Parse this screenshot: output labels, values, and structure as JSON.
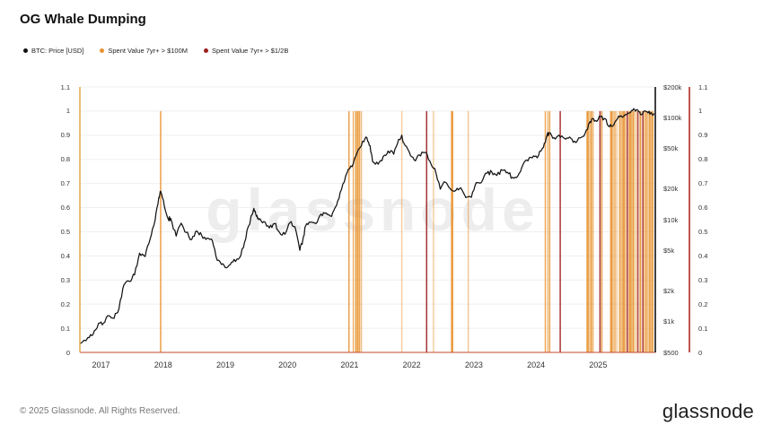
{
  "title": "OG Whale Dumping",
  "watermark": "glassnode",
  "legend": [
    {
      "label": "BTC: Price [USD]",
      "color": "#111111"
    },
    {
      "label": "Spent Value 7yr+ > $100M",
      "color": "#E8922F"
    },
    {
      "label": "Spent Value 7yr+ > $1/2B",
      "color": "#9E1E1E"
    }
  ],
  "footer": {
    "copyright": "© 2025 Glassnode. All Rights Reserved.",
    "logo": "glassnode"
  },
  "chart_data": {
    "type": "line",
    "title": "OG Whale Dumping",
    "grid": true,
    "x_axis": {
      "range": [
        2016.66,
        2025.92
      ],
      "ticks": [
        2017,
        2018,
        2019,
        2020,
        2021,
        2022,
        2023,
        2024,
        2025
      ],
      "tick_labels": [
        "2017",
        "2018",
        "2019",
        "2020",
        "2021",
        "2022",
        "2023",
        "2024",
        "2025"
      ]
    },
    "left_axis": {
      "side": "left",
      "color": "#DFA23E",
      "range": [
        0,
        1.1
      ],
      "tick_values": [
        0,
        0.1,
        0.2,
        0.3,
        0.4,
        0.5,
        0.6,
        0.7,
        0.8,
        0.9,
        1,
        1.1
      ],
      "tick_labels": [
        "0",
        "0.1",
        "0.2",
        "0.3",
        "0.4",
        "0.5",
        "0.6",
        "0.7",
        "0.8",
        "0.9",
        "1",
        "1.1"
      ]
    },
    "price_axis": {
      "side": "right",
      "color": "#111111",
      "scale": "log",
      "range_usd": [
        500,
        200000
      ],
      "ticks": [
        {
          "label": "$200k",
          "value": 200000
        },
        {
          "label": "$100k",
          "value": 100000
        },
        {
          "label": "$50k",
          "value": 50000
        },
        {
          "label": "$20k",
          "value": 20000
        },
        {
          "label": "$10k",
          "value": 10000
        },
        {
          "label": "$5k",
          "value": 5000
        },
        {
          "label": "$2k",
          "value": 2000
        },
        {
          "label": "$1k",
          "value": 1000
        },
        {
          "label": "$500",
          "value": 500
        }
      ]
    },
    "far_right_axis": {
      "side": "far-right",
      "color": "#B02A21",
      "range": [
        0,
        1.1
      ],
      "tick_values": [
        0,
        0.1,
        0.2,
        0.3,
        0.4,
        0.5,
        0.6,
        0.7,
        0.8,
        0.9,
        1,
        1.1
      ],
      "tick_labels": [
        "0",
        "0.1",
        "0.2",
        "0.3",
        "0.4",
        "0.5",
        "0.6",
        "0.7",
        "0.8",
        "0.9",
        "1",
        "1.1"
      ]
    },
    "price_series": {
      "name": "BTC: Price [USD]",
      "color": "#131313",
      "x": [
        2016.66,
        2016.79,
        2016.87,
        2016.96,
        2017.04,
        2017.12,
        2017.21,
        2017.29,
        2017.37,
        2017.46,
        2017.54,
        2017.62,
        2017.71,
        2017.79,
        2017.87,
        2017.93,
        2017.96,
        2018.02,
        2018.08,
        2018.12,
        2018.21,
        2018.29,
        2018.37,
        2018.46,
        2018.54,
        2018.62,
        2018.71,
        2018.79,
        2018.87,
        2018.96,
        2019.04,
        2019.12,
        2019.21,
        2019.29,
        2019.37,
        2019.46,
        2019.5,
        2019.54,
        2019.62,
        2019.71,
        2019.79,
        2019.87,
        2019.96,
        2020.04,
        2020.12,
        2020.2,
        2020.25,
        2020.29,
        2020.37,
        2020.46,
        2020.54,
        2020.62,
        2020.71,
        2020.79,
        2020.87,
        2020.96,
        2021.04,
        2021.12,
        2021.21,
        2021.28,
        2021.33,
        2021.37,
        2021.46,
        2021.54,
        2021.62,
        2021.71,
        2021.79,
        2021.84,
        2021.87,
        2021.96,
        2022.04,
        2022.12,
        2022.21,
        2022.29,
        2022.37,
        2022.46,
        2022.54,
        2022.62,
        2022.71,
        2022.79,
        2022.87,
        2022.96,
        2023.04,
        2023.12,
        2023.21,
        2023.29,
        2023.37,
        2023.46,
        2023.54,
        2023.62,
        2023.71,
        2023.79,
        2023.87,
        2023.96,
        2024.04,
        2024.12,
        2024.18,
        2024.21,
        2024.29,
        2024.37,
        2024.46,
        2024.54,
        2024.62,
        2024.71,
        2024.79,
        2024.87,
        2024.92,
        2024.96,
        2025.04,
        2025.12,
        2025.16,
        2025.21,
        2025.29,
        2025.37,
        2025.46,
        2025.54,
        2025.6,
        2025.67,
        2025.71,
        2025.79,
        2025.85,
        2025.9
      ],
      "price_usd": [
        610,
        700,
        745,
        965,
        970,
        1150,
        1080,
        1350,
        2300,
        2480,
        2880,
        4700,
        4350,
        6450,
        9900,
        16500,
        19000,
        13500,
        10200,
        10300,
        6900,
        9250,
        7500,
        6400,
        7750,
        7000,
        6600,
        6300,
        4000,
        3700,
        3450,
        3850,
        4100,
        5300,
        8550,
        12900,
        10800,
        10000,
        9600,
        8300,
        9150,
        7550,
        7200,
        9350,
        8550,
        5000,
        6450,
        8650,
        9450,
        9140,
        11350,
        11650,
        10780,
        13800,
        19700,
        29000,
        33100,
        45200,
        58800,
        63500,
        53000,
        37300,
        35000,
        41500,
        47100,
        43800,
        61300,
        67500,
        57000,
        46200,
        38500,
        43200,
        45500,
        37700,
        31800,
        19900,
        23300,
        20050,
        19400,
        20500,
        16500,
        16550,
        23100,
        23150,
        28500,
        29250,
        27200,
        30450,
        29200,
        26000,
        26950,
        34650,
        37700,
        42250,
        42550,
        51200,
        68500,
        71300,
        63600,
        67500,
        62700,
        64600,
        58950,
        63300,
        70200,
        91400,
        98000,
        93400,
        102400,
        96900,
        84350,
        82550,
        94200,
        104600,
        107100,
        118000,
        115800,
        113000,
        108200,
        114000,
        112000,
        110000
      ]
    },
    "events_100m": {
      "name": "Spent Value 7yr+ > $100M",
      "color": "#E8922F",
      "impulse_top": 1.0,
      "items": [
        [
          2017.96,
          0.9,
          1.5
        ],
        [
          2020.99,
          0.85,
          1.5
        ],
        [
          2021.06,
          0.7,
          1.5
        ],
        [
          2021.1,
          0.9,
          1.5
        ],
        [
          2021.13,
          0.9,
          2
        ],
        [
          2021.16,
          0.85,
          1.5
        ],
        [
          2021.19,
          0.6,
          1.5
        ],
        [
          2021.84,
          0.45,
          1.5
        ],
        [
          2022.35,
          0.45,
          1.5
        ],
        [
          2022.65,
          0.95,
          2.5
        ],
        [
          2022.91,
          0.5,
          1.5
        ],
        [
          2024.15,
          0.8,
          1.5
        ],
        [
          2024.19,
          0.6,
          1.5
        ],
        [
          2024.22,
          0.85,
          1.5
        ],
        [
          2024.83,
          0.9,
          2.5
        ],
        [
          2024.86,
          0.5,
          2
        ],
        [
          2024.89,
          0.85,
          2
        ],
        [
          2024.92,
          0.6,
          1.5
        ],
        [
          2025.06,
          0.85,
          1.5
        ],
        [
          2025.21,
          0.9,
          2.5
        ],
        [
          2025.24,
          0.55,
          2
        ],
        [
          2025.27,
          0.8,
          1.5
        ],
        [
          2025.3,
          0.5,
          1.5
        ],
        [
          2025.35,
          0.85,
          2
        ],
        [
          2025.38,
          0.6,
          1.5
        ],
        [
          2025.41,
          0.9,
          2.5
        ],
        [
          2025.44,
          0.65,
          1.5
        ],
        [
          2025.51,
          0.9,
          2.5
        ],
        [
          2025.54,
          0.7,
          2
        ],
        [
          2025.57,
          0.85,
          2
        ],
        [
          2025.61,
          0.6,
          1.5
        ],
        [
          2025.68,
          0.9,
          2
        ],
        [
          2025.74,
          0.55,
          1.5
        ],
        [
          2025.77,
          0.85,
          2
        ],
        [
          2025.8,
          0.6,
          1.5
        ],
        [
          2025.83,
          0.9,
          2
        ],
        [
          2025.86,
          0.7,
          1.5
        ],
        [
          2025.88,
          0.85,
          1.5
        ]
      ]
    },
    "events_500m": {
      "name": "Spent Value 7yr+ > $1/2B",
      "color": "#9E1E1E",
      "impulse_top": 1.0,
      "items": [
        [
          2022.24,
          0.9,
          1.5
        ],
        [
          2024.39,
          0.9,
          1.5
        ],
        [
          2025.03,
          0.9,
          1.5
        ],
        [
          2025.47,
          0.9,
          1.5
        ],
        [
          2025.64,
          0.85,
          1.5
        ],
        [
          2025.72,
          0.85,
          1.5
        ]
      ]
    },
    "baseline_color": "#C2482E",
    "grid_color": "#efefef"
  }
}
